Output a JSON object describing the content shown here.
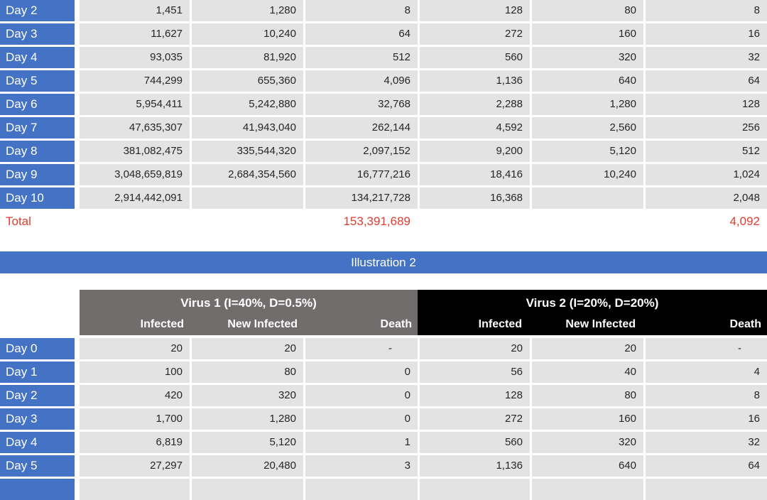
{
  "colors": {
    "accent_blue": "#4472C4",
    "header_gray": "#716D6D",
    "header_black": "#000000",
    "cell_gray": "#E4E3E3",
    "total_red": "#E03C30",
    "value_text": "#262626"
  },
  "illustration1": {
    "rows": [
      {
        "label": "Day 2",
        "values": [
          "1,451",
          "1,280",
          "8",
          "128",
          "80",
          "8"
        ]
      },
      {
        "label": "Day 3",
        "values": [
          "11,627",
          "10,240",
          "64",
          "272",
          "160",
          "16"
        ]
      },
      {
        "label": "Day 4",
        "values": [
          "93,035",
          "81,920",
          "512",
          "560",
          "320",
          "32"
        ]
      },
      {
        "label": "Day 5",
        "values": [
          "744,299",
          "655,360",
          "4,096",
          "1,136",
          "640",
          "64"
        ]
      },
      {
        "label": "Day 6",
        "values": [
          "5,954,411",
          "5,242,880",
          "32,768",
          "2,288",
          "1,280",
          "128"
        ]
      },
      {
        "label": "Day 7",
        "values": [
          "47,635,307",
          "41,943,040",
          "262,144",
          "4,592",
          "2,560",
          "256"
        ]
      },
      {
        "label": "Day 8",
        "values": [
          "381,082,475",
          "335,544,320",
          "2,097,152",
          "9,200",
          "5,120",
          "512"
        ]
      },
      {
        "label": "Day 9",
        "values": [
          "3,048,659,819",
          "2,684,354,560",
          "16,777,216",
          "18,416",
          "10,240",
          "1,024"
        ]
      },
      {
        "label": "Day 10",
        "values": [
          "2,914,442,091",
          "",
          "134,217,728",
          "16,368",
          "",
          "2,048"
        ]
      }
    ],
    "total": {
      "label": "Total",
      "values": [
        "",
        "",
        "153,391,689",
        "",
        "",
        "4,092"
      ]
    }
  },
  "illustration2": {
    "section_title": "Illustration 2",
    "virus1": {
      "title": "Virus 1 (I=40%, D=0.5%)",
      "columns": [
        "Infected",
        "New Infected",
        "Death"
      ]
    },
    "virus2": {
      "title": "Virus 2 (I=20%, D=20%)",
      "columns": [
        "Infected",
        "New Infected",
        "Death"
      ]
    },
    "rows": [
      {
        "label": "Day 0",
        "values": [
          "20",
          "20",
          "-",
          "20",
          "20",
          "-"
        ]
      },
      {
        "label": "Day 1",
        "values": [
          "100",
          "80",
          "0",
          "56",
          "40",
          "4"
        ]
      },
      {
        "label": "Day 2",
        "values": [
          "420",
          "320",
          "0",
          "128",
          "80",
          "8"
        ]
      },
      {
        "label": "Day 3",
        "values": [
          "1,700",
          "1,280",
          "0",
          "272",
          "160",
          "16"
        ]
      },
      {
        "label": "Day 4",
        "values": [
          "6,819",
          "5,120",
          "1",
          "560",
          "320",
          "32"
        ]
      },
      {
        "label": "Day 5",
        "values": [
          "27,297",
          "20,480",
          "3",
          "1,136",
          "640",
          "64"
        ]
      },
      {
        "label": "",
        "values": [
          "",
          "",
          "",
          "",
          "",
          ""
        ]
      }
    ]
  }
}
